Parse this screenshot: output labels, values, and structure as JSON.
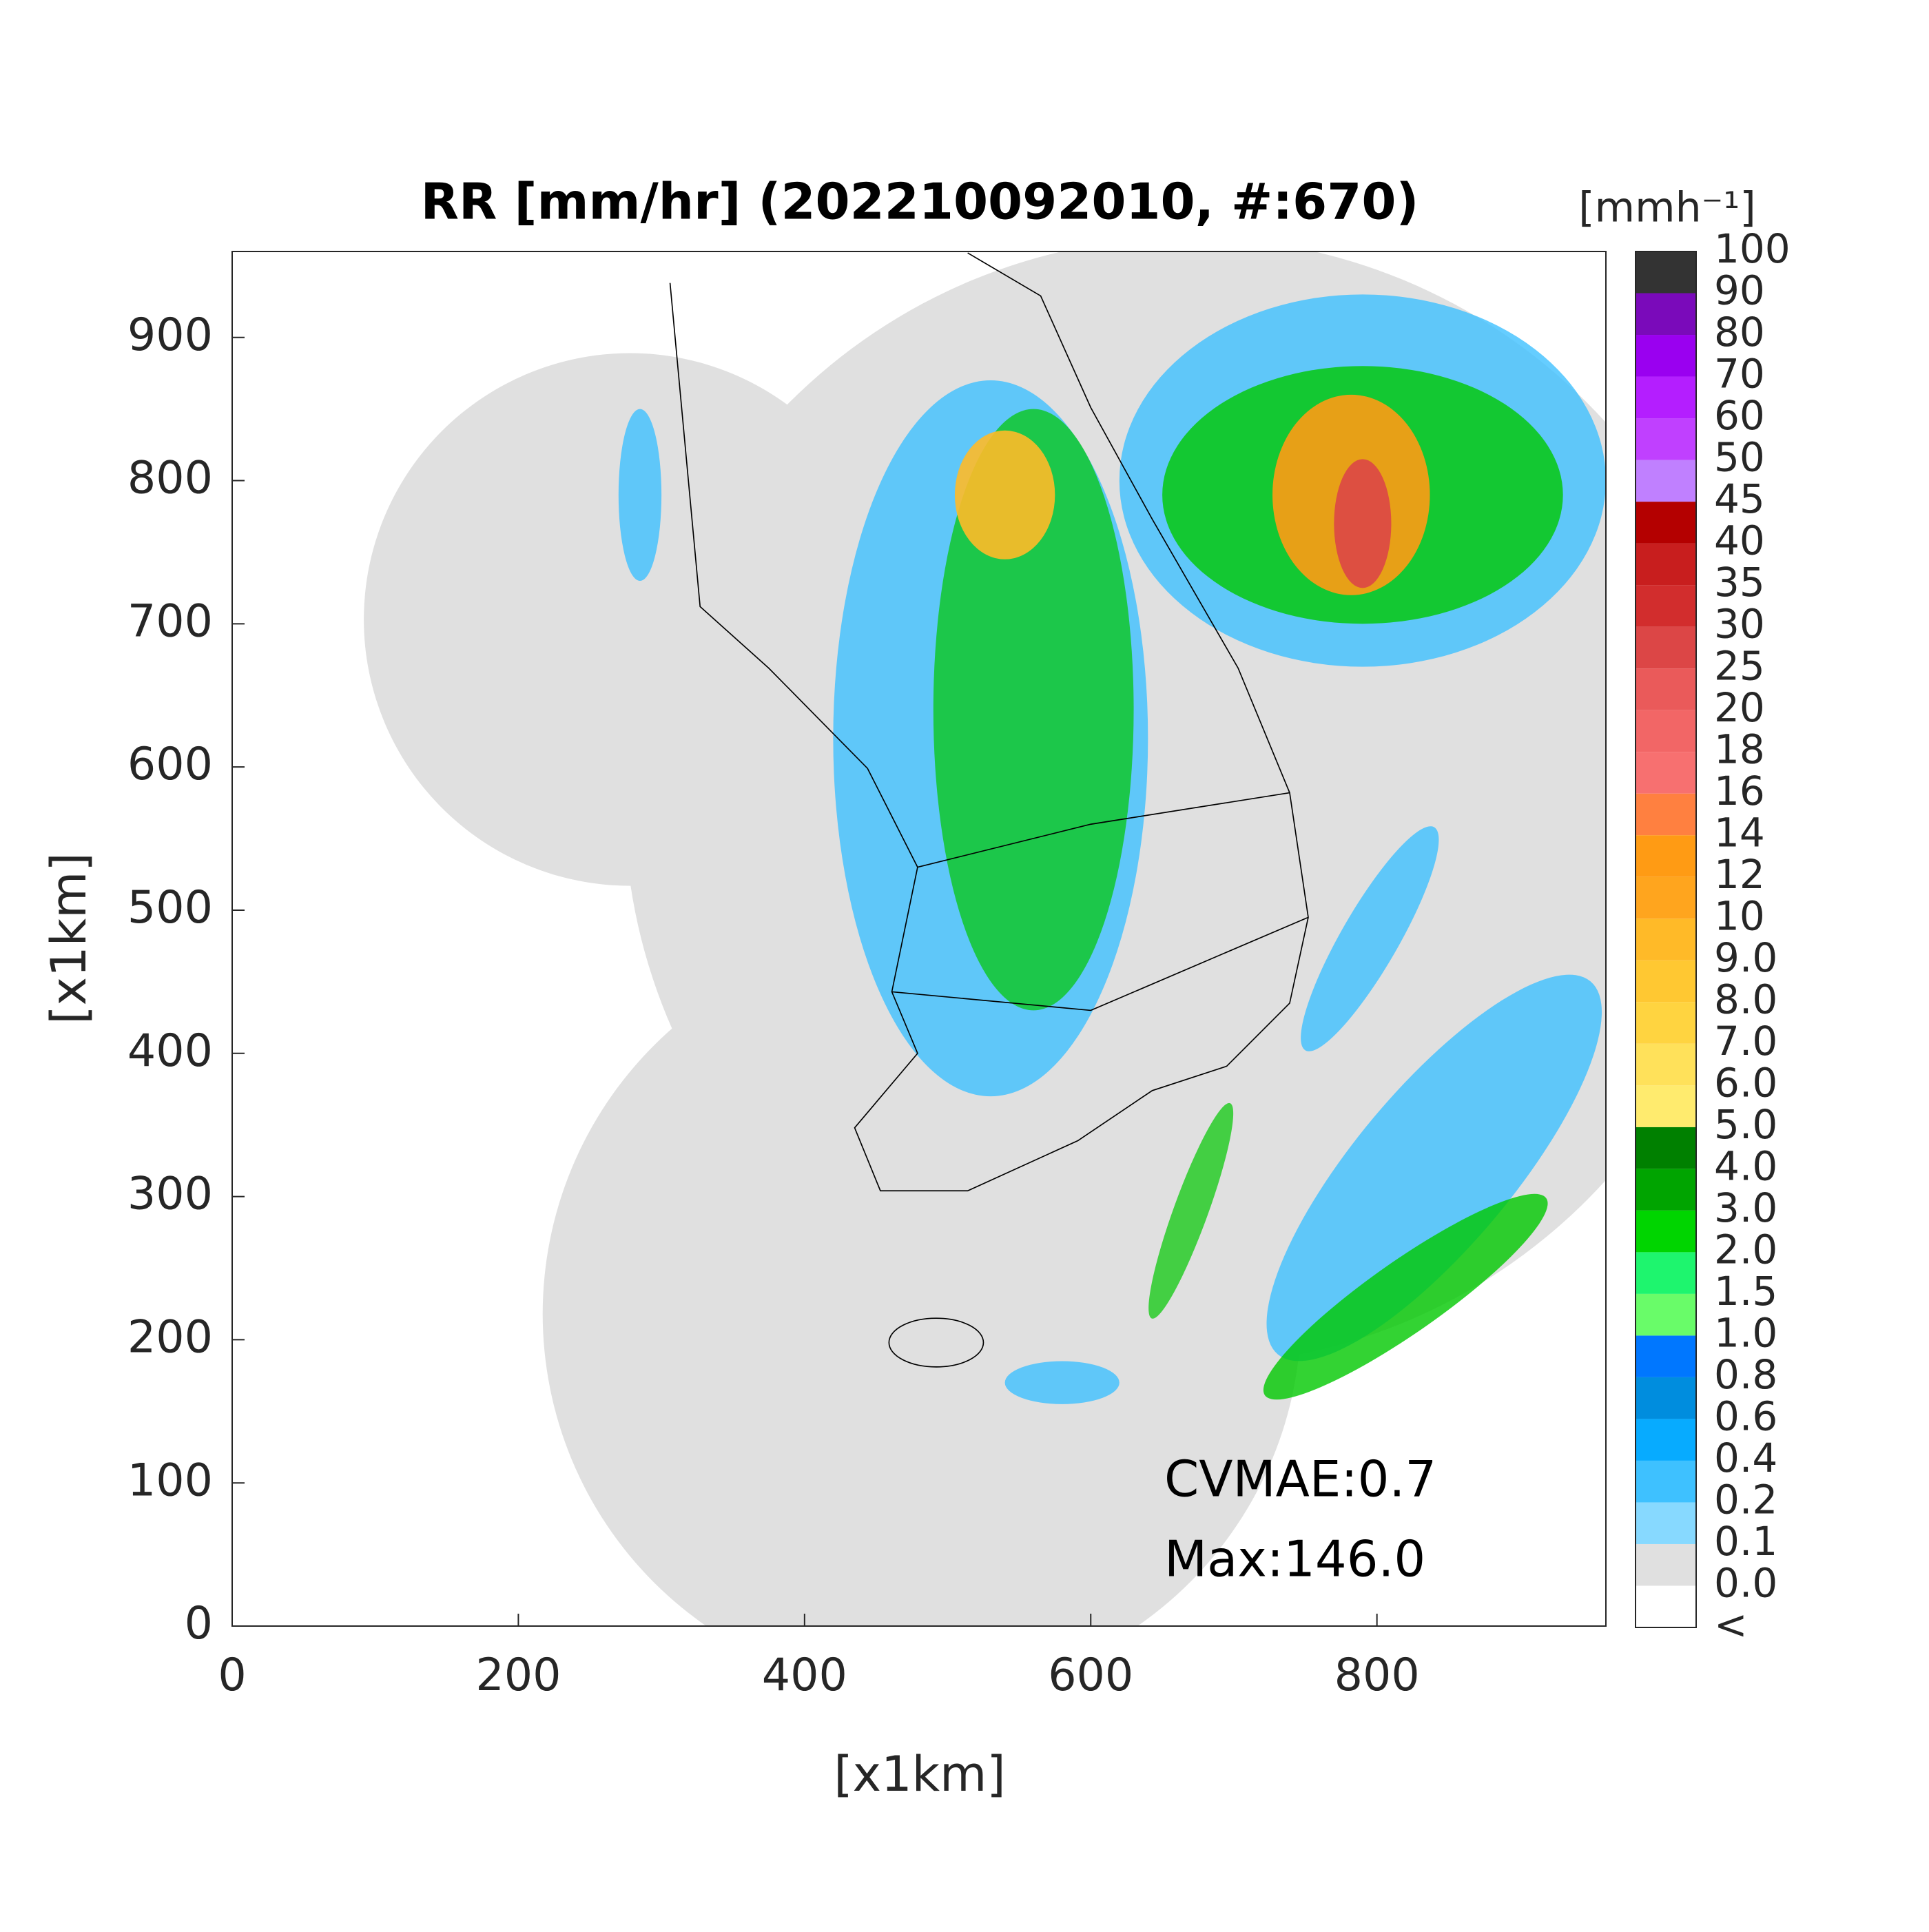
{
  "chart_data": {
    "type": "map",
    "title": "RR [mm/hr] (202210092010, #:670)",
    "x_label": "[x1km]",
    "y_label": "[x1km]",
    "xlim": [
      0,
      960
    ],
    "ylim": [
      0,
      960
    ],
    "xticks": [
      0,
      200,
      400,
      600,
      800
    ],
    "yticks": [
      0,
      100,
      200,
      300,
      400,
      500,
      600,
      700,
      800,
      900
    ],
    "annotations": [
      "CVMAE:0.7",
      "Max:146.0"
    ],
    "colorbar": {
      "title": "[mmh⁻¹]",
      "labels": [
        "<",
        "0.0",
        "0.1",
        "0.2",
        "0.4",
        "0.6",
        "0.8",
        "1.0",
        "1.5",
        "2.0",
        "3.0",
        "4.0",
        "5.0",
        "6.0",
        "7.0",
        "8.0",
        "9.0",
        "10",
        "12",
        "14",
        "16",
        "18",
        "20",
        "25",
        "30",
        "35",
        "40",
        "45",
        "50",
        "60",
        "70",
        "80",
        "90",
        "100"
      ],
      "colors": [
        "#ffffff",
        "#e0e0e0",
        "#87d9ff",
        "#3ec1ff",
        "#07abff",
        "#008dde",
        "#0077ff",
        "#69fc69",
        "#1ef56e",
        "#00d500",
        "#00a400",
        "#008000",
        "#ffeb6e",
        "#ffe15a",
        "#ffd440",
        "#ffc832",
        "#ffba28",
        "#ffa51e",
        "#ff9b14",
        "#ff8040",
        "#f77070",
        "#f26666",
        "#ea5a5a",
        "#dc4646",
        "#d22d2d",
        "#c81e1e",
        "#b40000",
        "#c080ff",
        "#c040ff",
        "#b41eff",
        "#9a00f0",
        "#7a0aba",
        "#333333"
      ]
    }
  }
}
